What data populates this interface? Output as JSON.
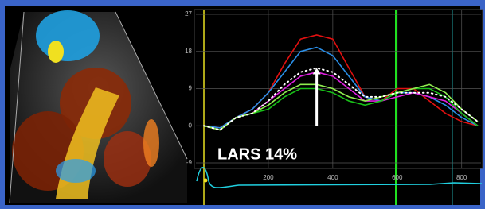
{
  "chart_data": {
    "type": "line",
    "annotation": "LARS 14%",
    "x": [
      0,
      50,
      100,
      150,
      200,
      250,
      300,
      350,
      400,
      450,
      500,
      550,
      600,
      650,
      700,
      750,
      800,
      850
    ],
    "series": [
      {
        "color": "#e01010",
        "values": [
          0,
          -0.5,
          2,
          4,
          8,
          15,
          21,
          22,
          21,
          14,
          7,
          6,
          9,
          9,
          6,
          3,
          1,
          0
        ]
      },
      {
        "color": "#2a8fe8",
        "values": [
          0,
          -0.5,
          2,
          4,
          8,
          13,
          18,
          19,
          17,
          12,
          7,
          6,
          8,
          8,
          7,
          5,
          2,
          0
        ]
      },
      {
        "color": "#e020e0",
        "values": [
          0,
          -1,
          2,
          3,
          6,
          9,
          12,
          13,
          12,
          9,
          6,
          6,
          7,
          8,
          7,
          6,
          3,
          0
        ]
      },
      {
        "color": "#18c018",
        "values": [
          0,
          -1,
          2,
          3,
          4,
          7,
          9,
          9,
          8,
          6,
          5,
          6,
          8,
          9,
          9,
          7,
          3,
          0
        ]
      },
      {
        "color": "#90ee50",
        "values": [
          0,
          -1,
          2,
          3,
          5,
          8,
          10,
          10,
          9,
          7,
          6,
          7,
          8,
          9,
          10,
          8,
          4,
          1
        ]
      },
      {
        "color": "#ffffff",
        "style": "dotted",
        "values": [
          0,
          -1,
          2,
          3,
          6,
          10,
          13,
          14,
          13,
          10,
          7,
          7,
          8,
          8,
          8,
          7,
          4,
          1
        ]
      }
    ],
    "arrow_value": 14,
    "arrow_x": 350,
    "xlim": [
      0,
      860
    ],
    "ylim": [
      -9,
      27
    ],
    "xticks": [
      200,
      400,
      600,
      800
    ],
    "yticks": [
      27,
      18,
      9,
      0,
      -9
    ],
    "grid": true
  }
}
